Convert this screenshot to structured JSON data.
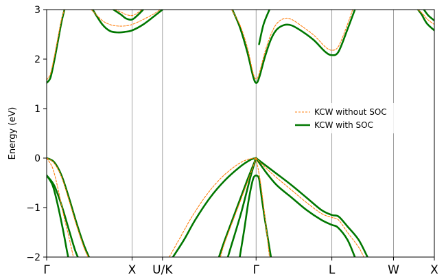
{
  "chart_data": {
    "type": "line",
    "title": "",
    "xlabel": "",
    "ylabel": "Energy (eV)",
    "ylim": [
      -2,
      3
    ],
    "xlim": [
      0,
      5.22
    ],
    "yticks": [
      -2,
      -1,
      0,
      1,
      2,
      3
    ],
    "ytick_labels": [
      "−2",
      "−1",
      "0",
      "1",
      "2",
      "3"
    ],
    "kpoints": [
      {
        "label": "Γ",
        "x": 0.0
      },
      {
        "label": "X",
        "x": 1.15
      },
      {
        "label": "U/K",
        "x": 1.56
      },
      {
        "label": "Γ",
        "x": 2.82
      },
      {
        "label": "L",
        "x": 3.84
      },
      {
        "label": "W",
        "x": 4.67
      },
      {
        "label": "X",
        "x": 5.22
      }
    ],
    "legend": {
      "placement": "center-right",
      "entries": [
        "KCW without SOC",
        "KCW with SOC"
      ]
    },
    "colors": {
      "without_soc": "#ff7f0e",
      "with_soc": "#007700",
      "kpoint_line": "#888888"
    },
    "series": [
      {
        "name": "KCW with SOC",
        "style": "solid",
        "bands": [
          [
            [
              0,
              1.52
            ],
            [
              0.05,
              1.62
            ],
            [
              0.1,
              1.95
            ],
            [
              0.15,
              2.35
            ],
            [
              0.2,
              2.75
            ],
            [
              0.24,
              3.0
            ]
          ],
          [
            [
              0.62,
              3.0
            ],
            [
              0.75,
              2.7
            ],
            [
              0.85,
              2.57
            ],
            [
              0.95,
              2.54
            ],
            [
              1.05,
              2.55
            ],
            [
              1.15,
              2.58
            ],
            [
              1.3,
              2.7
            ],
            [
              1.45,
              2.87
            ],
            [
              1.56,
              3.0
            ]
          ],
          [
            [
              0.9,
              3.0
            ],
            [
              1.0,
              2.9
            ],
            [
              1.07,
              2.82
            ],
            [
              1.15,
              2.8
            ],
            [
              1.22,
              2.88
            ],
            [
              1.3,
              3.0
            ]
          ],
          [
            [
              2.5,
              3.0
            ],
            [
              2.6,
              2.65
            ],
            [
              2.7,
              2.15
            ],
            [
              2.78,
              1.65
            ],
            [
              2.82,
              1.52
            ],
            [
              2.86,
              1.62
            ],
            [
              2.94,
              2.05
            ],
            [
              3.02,
              2.4
            ],
            [
              3.1,
              2.6
            ],
            [
              3.2,
              2.69
            ],
            [
              3.3,
              2.68
            ],
            [
              3.45,
              2.55
            ],
            [
              3.6,
              2.38
            ],
            [
              3.75,
              2.15
            ],
            [
              3.84,
              2.08
            ],
            [
              3.93,
              2.15
            ],
            [
              4.05,
              2.6
            ],
            [
              4.15,
              3.0
            ]
          ],
          [
            [
              3.0,
              3.0
            ],
            [
              2.92,
              2.7
            ],
            [
              2.86,
              2.3
            ]
          ],
          [
            [
              5.0,
              3.0
            ],
            [
              5.05,
              2.9
            ],
            [
              5.12,
              2.72
            ],
            [
              5.22,
              2.58
            ]
          ],
          [
            [
              5.08,
              3.0
            ],
            [
              5.14,
              2.88
            ],
            [
              5.22,
              2.78
            ]
          ],
          [
            [
              0,
              0
            ],
            [
              0.1,
              -0.08
            ],
            [
              0.2,
              -0.35
            ],
            [
              0.3,
              -0.8
            ],
            [
              0.4,
              -1.3
            ],
            [
              0.5,
              -1.75
            ],
            [
              0.57,
              -2.0
            ]
          ],
          [
            [
              0,
              -0.35
            ],
            [
              0.1,
              -0.55
            ],
            [
              0.2,
              -0.95
            ],
            [
              0.3,
              -1.45
            ],
            [
              0.38,
              -1.85
            ],
            [
              0.42,
              -2.0
            ]
          ],
          [
            [
              0,
              -0.35
            ],
            [
              0.08,
              -0.55
            ],
            [
              0.15,
              -0.95
            ],
            [
              0.22,
              -1.45
            ],
            [
              0.27,
              -1.85
            ],
            [
              0.29,
              -2.0
            ]
          ],
          [
            [
              1.7,
              -2.0
            ],
            [
              1.85,
              -1.65
            ],
            [
              2.0,
              -1.25
            ],
            [
              2.2,
              -0.8
            ],
            [
              2.4,
              -0.45
            ],
            [
              2.6,
              -0.18
            ],
            [
              2.75,
              -0.03
            ],
            [
              2.82,
              0
            ]
          ],
          [
            [
              2.82,
              0
            ],
            [
              2.7,
              -0.45
            ],
            [
              2.55,
              -1.05
            ],
            [
              2.4,
              -1.65
            ],
            [
              2.32,
              -2.0
            ]
          ],
          [
            [
              2.82,
              0
            ],
            [
              2.75,
              -0.35
            ],
            [
              2.62,
              -1.1
            ],
            [
              2.48,
              -1.8
            ],
            [
              2.44,
              -2.0
            ]
          ],
          [
            [
              2.82,
              -0.35
            ],
            [
              2.78,
              -0.42
            ],
            [
              2.72,
              -0.85
            ],
            [
              2.66,
              -1.45
            ],
            [
              2.6,
              -2.0
            ]
          ],
          [
            [
              2.82,
              -0.35
            ],
            [
              2.86,
              -0.42
            ],
            [
              2.9,
              -0.85
            ],
            [
              2.96,
              -1.45
            ],
            [
              3.02,
              -2.0
            ]
          ],
          [
            [
              2.82,
              0
            ],
            [
              2.95,
              -0.15
            ],
            [
              3.1,
              -0.32
            ],
            [
              3.3,
              -0.55
            ],
            [
              3.5,
              -0.8
            ],
            [
              3.7,
              -1.05
            ],
            [
              3.84,
              -1.15
            ],
            [
              3.93,
              -1.18
            ],
            [
              4.05,
              -1.38
            ],
            [
              4.2,
              -1.65
            ],
            [
              4.32,
              -2.0
            ]
          ],
          [
            [
              2.82,
              0
            ],
            [
              2.95,
              -0.28
            ],
            [
              3.1,
              -0.55
            ],
            [
              3.3,
              -0.8
            ],
            [
              3.5,
              -1.05
            ],
            [
              3.7,
              -1.25
            ],
            [
              3.84,
              -1.35
            ],
            [
              3.92,
              -1.4
            ],
            [
              4.05,
              -1.65
            ],
            [
              4.15,
              -2.0
            ]
          ]
        ]
      },
      {
        "name": "KCW without SOC",
        "style": "dashed",
        "bands": [
          [
            [
              0,
              1.58
            ],
            [
              0.05,
              1.7
            ],
            [
              0.1,
              2.03
            ],
            [
              0.15,
              2.42
            ],
            [
              0.2,
              2.8
            ],
            [
              0.24,
              3.0
            ]
          ],
          [
            [
              0.6,
              3.0
            ],
            [
              0.75,
              2.78
            ],
            [
              0.85,
              2.7
            ],
            [
              0.95,
              2.67
            ],
            [
              1.05,
              2.67
            ],
            [
              1.15,
              2.7
            ],
            [
              1.3,
              2.8
            ],
            [
              1.45,
              2.92
            ],
            [
              1.53,
              3.0
            ]
          ],
          [
            [
              0.92,
              3.0
            ],
            [
              1.0,
              2.95
            ],
            [
              1.07,
              2.9
            ],
            [
              1.15,
              2.88
            ],
            [
              1.22,
              2.93
            ],
            [
              1.28,
              3.0
            ]
          ],
          [
            [
              2.49,
              3.0
            ],
            [
              2.6,
              2.7
            ],
            [
              2.7,
              2.25
            ],
            [
              2.78,
              1.72
            ],
            [
              2.82,
              1.6
            ],
            [
              2.86,
              1.7
            ],
            [
              2.94,
              2.15
            ],
            [
              3.02,
              2.5
            ],
            [
              3.1,
              2.72
            ],
            [
              3.2,
              2.82
            ],
            [
              3.3,
              2.8
            ],
            [
              3.45,
              2.65
            ],
            [
              3.6,
              2.48
            ],
            [
              3.75,
              2.25
            ],
            [
              3.84,
              2.18
            ],
            [
              3.93,
              2.26
            ],
            [
              4.05,
              2.7
            ],
            [
              4.12,
              3.0
            ]
          ],
          [
            [
              5.0,
              3.0
            ],
            [
              5.06,
              2.92
            ],
            [
              5.13,
              2.8
            ],
            [
              5.22,
              2.7
            ]
          ],
          [
            [
              0,
              0
            ],
            [
              0.1,
              -0.1
            ],
            [
              0.2,
              -0.38
            ],
            [
              0.3,
              -0.85
            ],
            [
              0.4,
              -1.35
            ],
            [
              0.5,
              -1.8
            ],
            [
              0.56,
              -2.0
            ]
          ],
          [
            [
              0,
              0
            ],
            [
              0.08,
              -0.2
            ],
            [
              0.15,
              -0.6
            ],
            [
              0.22,
              -1.1
            ],
            [
              0.3,
              -1.6
            ],
            [
              0.36,
              -2.0
            ]
          ],
          [
            [
              1.65,
              -2.0
            ],
            [
              1.8,
              -1.6
            ],
            [
              1.95,
              -1.2
            ],
            [
              2.15,
              -0.75
            ],
            [
              2.35,
              -0.4
            ],
            [
              2.55,
              -0.15
            ],
            [
              2.7,
              -0.03
            ],
            [
              2.82,
              0
            ]
          ],
          [
            [
              2.82,
              0
            ],
            [
              2.7,
              -0.5
            ],
            [
              2.55,
              -1.1
            ],
            [
              2.4,
              -1.7
            ],
            [
              2.34,
              -2.0
            ]
          ],
          [
            [
              2.82,
              0
            ],
            [
              2.88,
              -0.5
            ],
            [
              2.94,
              -1.2
            ],
            [
              3.0,
              -2.0
            ]
          ],
          [
            [
              2.82,
              0
            ],
            [
              2.95,
              -0.2
            ],
            [
              3.1,
              -0.4
            ],
            [
              3.3,
              -0.65
            ],
            [
              3.5,
              -0.9
            ],
            [
              3.7,
              -1.12
            ],
            [
              3.84,
              -1.2
            ],
            [
              3.93,
              -1.25
            ],
            [
              4.05,
              -1.5
            ],
            [
              4.2,
              -1.8
            ],
            [
              4.27,
              -2.0
            ]
          ]
        ]
      }
    ]
  }
}
